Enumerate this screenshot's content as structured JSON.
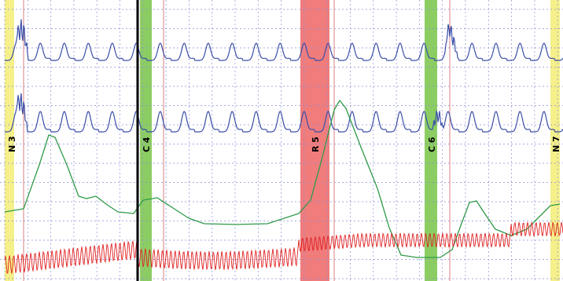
{
  "viewer": {
    "background": "#ffffff",
    "grid_color": "#8a8fd8",
    "cursor_color": "#000000"
  },
  "events": [
    {
      "label": "N 3",
      "kind": "N",
      "color": "#f5f08a"
    },
    {
      "label": "C 4",
      "kind": "C",
      "color": "#8ccd63"
    },
    {
      "label": "R 5",
      "kind": "R",
      "color": "#f07c7c"
    },
    {
      "label": "C 6",
      "kind": "C",
      "color": "#8ccd63"
    },
    {
      "label": "N 7",
      "kind": "N",
      "color": "#f5f08a"
    }
  ],
  "channels": [
    {
      "id": "channel-1",
      "color": "#3a4ea8"
    },
    {
      "id": "channel-2",
      "color": "#3a4ea8"
    },
    {
      "id": "channel-3",
      "color": "#2e9a48"
    },
    {
      "id": "channel-4",
      "color": "#e02020"
    }
  ],
  "marker_line_color": "#d98080"
}
